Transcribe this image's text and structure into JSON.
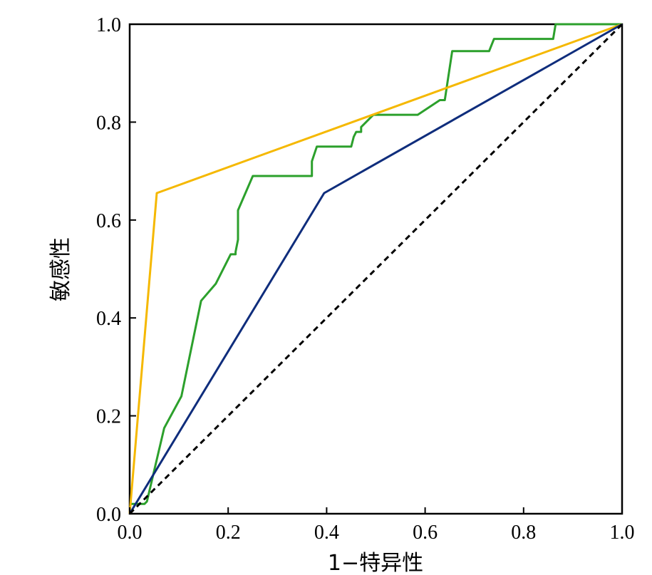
{
  "chart_data": {
    "type": "line",
    "xlabel": "1−特异性",
    "ylabel": "敏感性",
    "xlim": [
      0,
      1
    ],
    "ylim": [
      0,
      1
    ],
    "xticks": [
      "0.0",
      "0.2",
      "0.4",
      "0.6",
      "0.8",
      "1.0"
    ],
    "yticks": [
      "0.0",
      "0.2",
      "0.4",
      "0.6",
      "0.8",
      "1.0"
    ],
    "grid": false,
    "legend": "none",
    "series": [
      {
        "color": "#2ca02c",
        "x": [
          0,
          0.03,
          0.035,
          0.07,
          0.105,
          0.145,
          0.175,
          0.205,
          0.215,
          0.215,
          0.22,
          0.22,
          0.25,
          0.37,
          0.37,
          0.38,
          0.45,
          0.455,
          0.46,
          0.47,
          0.47,
          0.495,
          0.585,
          0.63,
          0.64,
          0.655,
          0.73,
          0.74,
          0.86,
          0.865,
          1.0
        ],
        "y": [
          0.02,
          0.02,
          0.025,
          0.175,
          0.24,
          0.435,
          0.47,
          0.53,
          0.53,
          0.535,
          0.56,
          0.62,
          0.69,
          0.69,
          0.72,
          0.75,
          0.75,
          0.77,
          0.78,
          0.78,
          0.79,
          0.815,
          0.815,
          0.845,
          0.845,
          0.945,
          0.945,
          0.97,
          0.97,
          1.0,
          1.0
        ]
      },
      {
        "color": "#f5b800",
        "x": [
          0,
          0.055,
          1.0
        ],
        "y": [
          0,
          0.655,
          1.0
        ]
      },
      {
        "color": "#0f2d7c",
        "x": [
          0,
          0.395,
          1.0
        ],
        "y": [
          0,
          0.655,
          1.0
        ]
      },
      {
        "color": "#000000",
        "dashed": true,
        "x": [
          0,
          1.0
        ],
        "y": [
          0,
          1.0
        ]
      }
    ]
  }
}
